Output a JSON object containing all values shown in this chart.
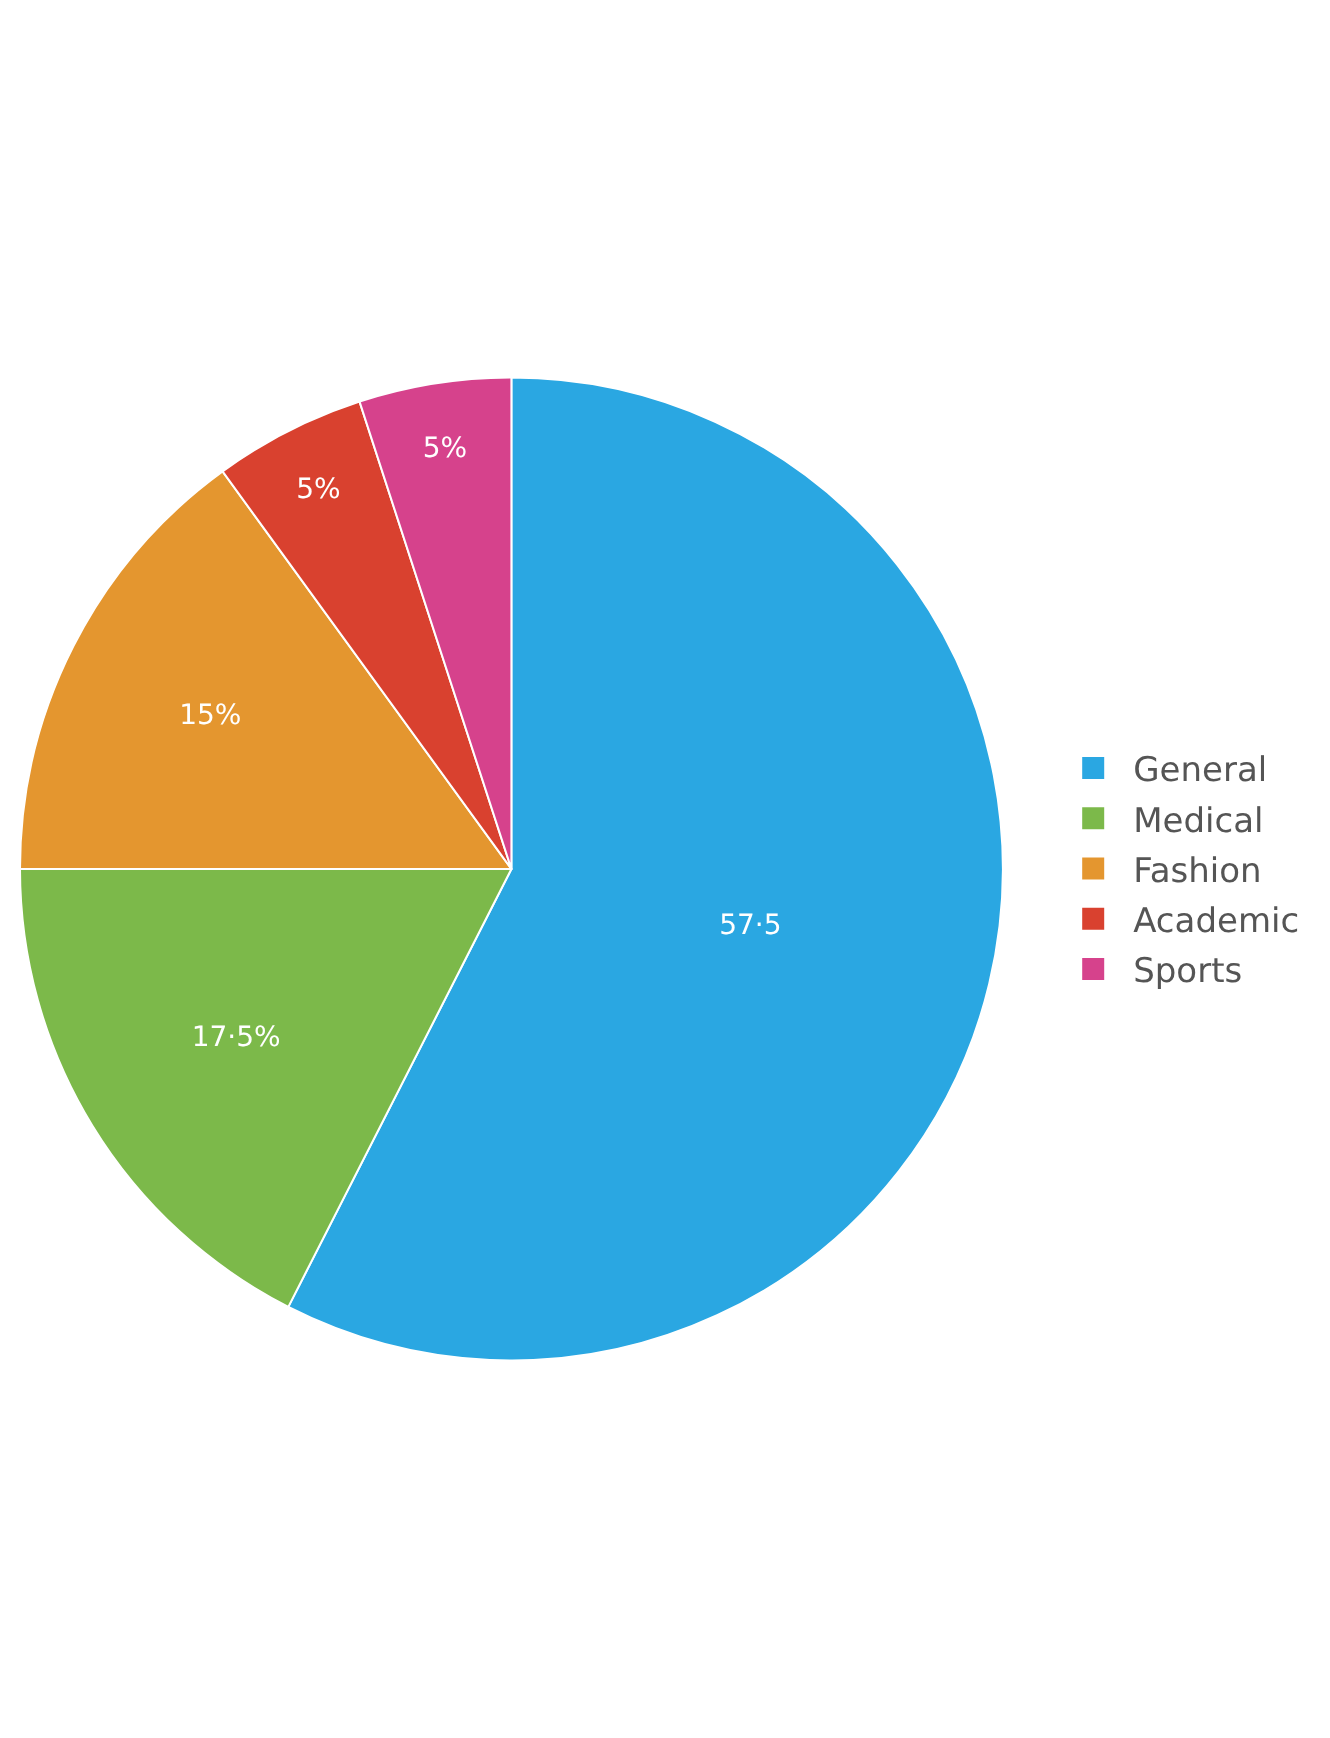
{
  "chart_data": {
    "type": "pie",
    "categories": [
      "General",
      "Medical",
      "Fashion",
      "Academic",
      "Sports"
    ],
    "values": [
      57.5,
      17.5,
      15,
      5,
      5
    ],
    "colors": [
      "#2aa7e2",
      "#7cb94a",
      "#e4962f",
      "#d9412f",
      "#d6428c"
    ],
    "value_labels": [
      "57·5",
      "17·5%",
      "15%",
      "5%",
      "5%"
    ],
    "legend": "right"
  }
}
